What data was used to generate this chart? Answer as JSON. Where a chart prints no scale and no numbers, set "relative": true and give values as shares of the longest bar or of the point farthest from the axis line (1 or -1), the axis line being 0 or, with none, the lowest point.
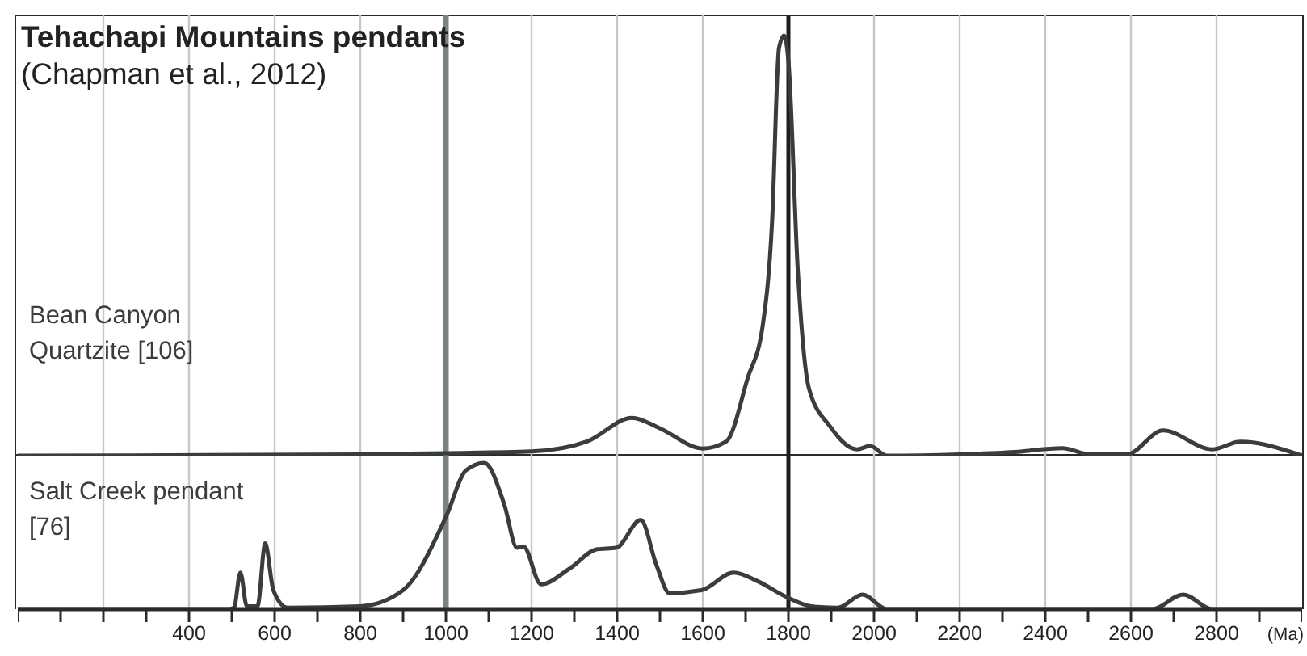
{
  "chart_data": [
    {
      "type": "line",
      "title": "Tehachapi Mountains pendants",
      "subtitle": "(Chapman et al., 2012)",
      "relative": true,
      "xlim": [
        0,
        3000
      ],
      "xticks": [
        {
          "value": 200,
          "label": null
        },
        {
          "value": 400,
          "label": null
        },
        {
          "value": 600,
          "label": null
        },
        {
          "value": 800,
          "label": null
        },
        {
          "value": 1000,
          "label": null
        },
        {
          "value": 1200,
          "label": null
        },
        {
          "value": 1400,
          "label": null
        },
        {
          "value": 1600,
          "label": null
        },
        {
          "value": 1800,
          "label": null
        },
        {
          "value": 2000,
          "label": null
        },
        {
          "value": 2200,
          "label": null
        },
        {
          "value": 2400,
          "label": null
        },
        {
          "value": 2600,
          "label": null
        },
        {
          "value": 2800,
          "label": null
        }
      ],
      "tick_labels": false,
      "grid": "x",
      "legend": false,
      "marker": "none",
      "line_style": "solid",
      "ref_lines": [
        {
          "axis": "x",
          "value": 1000,
          "color": "#7b8282"
        },
        {
          "axis": "x",
          "value": 1800,
          "color": "#1e1e1e"
        }
      ],
      "series": [
        {
          "name": "Bean Canyon Quartzite [106]",
          "color": "#3a3d3d",
          "x": [
            0,
            800,
            1000,
            1200,
            1330,
            1435,
            1500,
            1600,
            1655,
            1705,
            1740,
            1762,
            1778,
            1790,
            1800,
            1822,
            1848,
            1897,
            1960,
            1991,
            2030,
            2200,
            2320,
            2440,
            2505,
            2590,
            2675,
            2790,
            2855,
            3000
          ],
          "values": [
            0,
            0.003,
            0.006,
            0.01,
            0.034,
            0.09,
            0.065,
            0.017,
            0.034,
            0.185,
            0.31,
            0.56,
            0.97,
            1,
            0.94,
            0.44,
            0.16,
            0.07,
            0.015,
            0.023,
            0,
            0.003,
            0.008,
            0.018,
            0.003,
            0.003,
            0.06,
            0.015,
            0.033,
            0
          ]
        }
      ]
    },
    {
      "type": "line",
      "xlabel": "(Ma)",
      "relative": true,
      "xlim": [
        0,
        3000
      ],
      "xticks": [
        {
          "value": 0,
          "label": null
        },
        {
          "value": 100,
          "label": null
        },
        {
          "value": 200,
          "label": null
        },
        {
          "value": 300,
          "label": null
        },
        400,
        {
          "value": 500,
          "label": null
        },
        600,
        {
          "value": 700,
          "label": null
        },
        800,
        {
          "value": 900,
          "label": null
        },
        1000,
        {
          "value": 1100,
          "label": null
        },
        1200,
        {
          "value": 1300,
          "label": null
        },
        1400,
        {
          "value": 1500,
          "label": null
        },
        1600,
        {
          "value": 1700,
          "label": null
        },
        1800,
        {
          "value": 1900,
          "label": null
        },
        2000,
        {
          "value": 2100,
          "label": null
        },
        2200,
        {
          "value": 2300,
          "label": null
        },
        2400,
        {
          "value": 2500,
          "label": null
        },
        2600,
        {
          "value": 2700,
          "label": null
        },
        2800,
        {
          "value": 2900,
          "label": null
        },
        {
          "value": 3000,
          "label": null
        }
      ],
      "tick_labels": "x",
      "grid": "x",
      "legend": false,
      "marker": "none",
      "line_style": "solid",
      "ref_lines": [
        {
          "axis": "x",
          "value": 1000,
          "color": "#7b8282"
        },
        {
          "axis": "x",
          "value": 1800,
          "color": "#1e1e1e"
        }
      ],
      "series": [
        {
          "name": "Salt Creek pendant [76]",
          "color": "#3a3d3d",
          "x": [
            0,
            490,
            505,
            520,
            535,
            560,
            578,
            597,
            630,
            800,
            900,
            1000,
            1047,
            1090,
            1136,
            1166,
            1181,
            1222,
            1290,
            1353,
            1398,
            1455,
            1492,
            1522,
            1597,
            1672,
            1729,
            1791,
            1853,
            1916,
            1973,
            2030,
            2650,
            2722,
            2790,
            3000
          ],
          "values": [
            0,
            0,
            0.01,
            0.25,
            0.02,
            0.02,
            0.45,
            0.13,
            0.01,
            0.02,
            0.13,
            0.63,
            0.95,
            1,
            0.72,
            0.42,
            0.43,
            0.17,
            0.28,
            0.41,
            0.42,
            0.61,
            0.3,
            0.11,
            0.13,
            0.25,
            0.19,
            0.09,
            0.02,
            0.01,
            0.1,
            0,
            0,
            0.1,
            0,
            0
          ]
        }
      ]
    }
  ]
}
